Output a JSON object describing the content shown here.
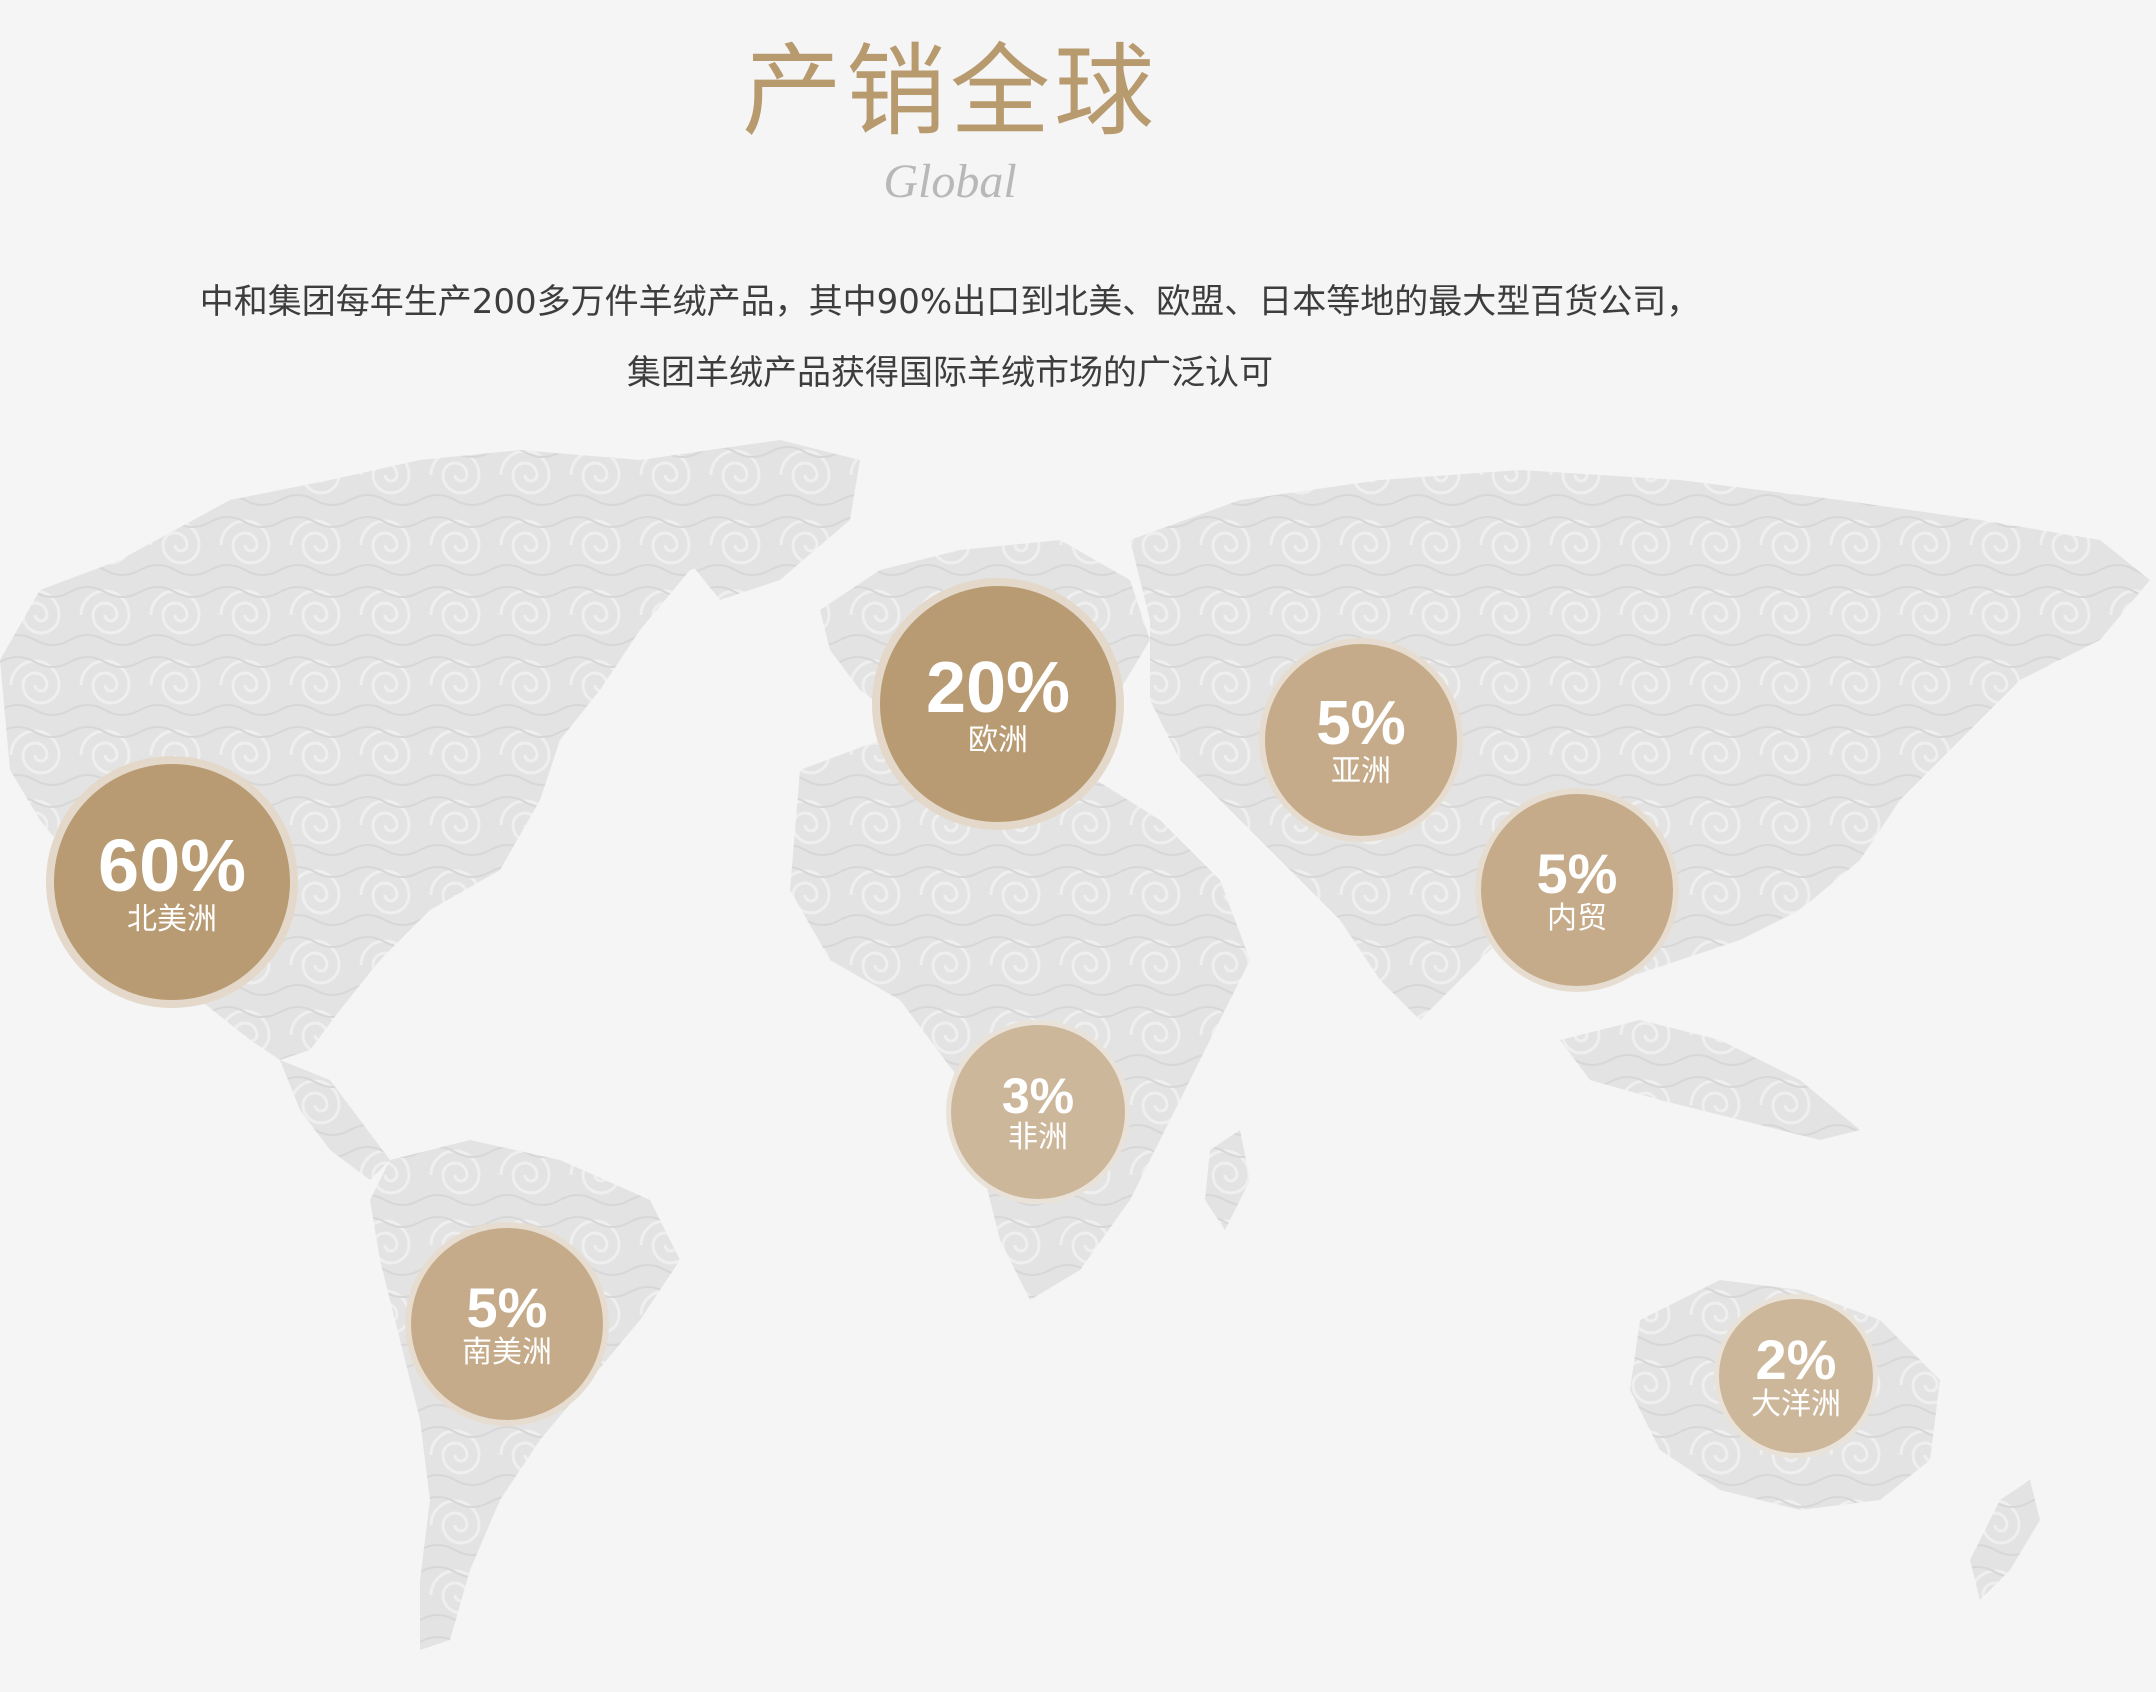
{
  "header": {
    "title": "产销全球",
    "subtitle": "Global"
  },
  "description": {
    "line1": "中和集团每年生产200多万件羊绒产品，其中90%出口到北美、欧盟、日本等地的最大型百货公司，",
    "line2": "集团羊绒产品获得国际羊绒市场的广泛认可"
  },
  "colors": {
    "accent": "#b89a6f",
    "bubble_dark": "#b89b73",
    "bubble_mid": "#c5ab89",
    "bubble_light": "#cdb79b",
    "map_fill": "#e4e4e4",
    "background": "#f5f5f5"
  },
  "regions": [
    {
      "id": "north-america",
      "percent": "60%",
      "name": "北美洲"
    },
    {
      "id": "europe",
      "percent": "20%",
      "name": "欧洲"
    },
    {
      "id": "asia",
      "percent": "5%",
      "name": "亚洲"
    },
    {
      "id": "domestic",
      "percent": "5%",
      "name": "内贸"
    },
    {
      "id": "africa",
      "percent": "3%",
      "name": "非洲"
    },
    {
      "id": "south-america",
      "percent": "5%",
      "name": "南美洲"
    },
    {
      "id": "oceania",
      "percent": "2%",
      "name": "大洋洲"
    }
  ]
}
